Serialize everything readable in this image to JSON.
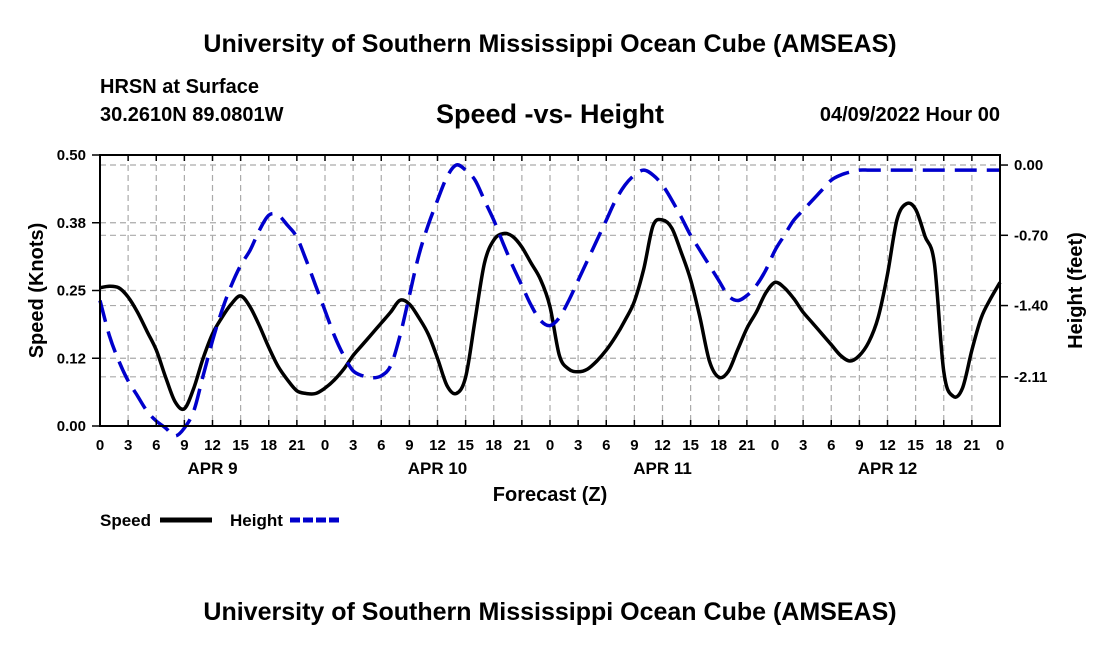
{
  "header": {
    "main_title": "University of Southern Mississippi Ocean Cube (AMSEAS)",
    "station": "HRSN at Surface",
    "coords": "30.2610N  89.0801W",
    "chart_title": "Speed -vs- Height",
    "date": "04/09/2022 Hour 00"
  },
  "footer": {
    "title": "University of Southern Mississippi Ocean Cube (AMSEAS)"
  },
  "chart_data": {
    "type": "line",
    "title": "Speed -vs- Height",
    "xlabel": "Forecast (Z)",
    "ylabel": "Speed (Knots)",
    "y2label": "Height (feet)",
    "xlim": [
      0,
      96
    ],
    "ylim": [
      0,
      0.5
    ],
    "y2lim": [
      -2.6,
      0.1
    ],
    "x_ticks": [
      0,
      3,
      6,
      9,
      12,
      15,
      18,
      21,
      24,
      27,
      30,
      33,
      36,
      39,
      42,
      45,
      48,
      51,
      54,
      57,
      60,
      63,
      66,
      69,
      72,
      75,
      78,
      81,
      84,
      87,
      90,
      93,
      96
    ],
    "x_tick_labels": [
      "0",
      "3",
      "6",
      "9",
      "12",
      "15",
      "18",
      "21",
      "0",
      "3",
      "6",
      "9",
      "12",
      "15",
      "18",
      "21",
      "0",
      "3",
      "6",
      "9",
      "12",
      "15",
      "18",
      "21",
      "0",
      "3",
      "6",
      "9",
      "12",
      "15",
      "18",
      "21",
      "0"
    ],
    "day_labels": [
      {
        "x": 12,
        "label": "APR 9"
      },
      {
        "x": 36,
        "label": "APR 10"
      },
      {
        "x": 60,
        "label": "APR 11"
      },
      {
        "x": 84,
        "label": "APR 12"
      }
    ],
    "y_ticks": [
      0.0,
      0.125,
      0.25,
      0.375,
      0.5
    ],
    "y_tick_labels": [
      "0.00",
      "0.12",
      "0.25",
      "0.38",
      "0.50"
    ],
    "y2_ticks": [
      0.0,
      -0.7,
      -1.4,
      -2.11
    ],
    "y2_tick_labels": [
      "0.00",
      "-0.70",
      "-1.40",
      "-2.11"
    ],
    "grid": true,
    "legend": "bottom-left",
    "series": [
      {
        "name": "Speed",
        "axis": "left",
        "color": "#000000",
        "dash": "solid",
        "x": [
          0,
          1,
          2,
          3,
          4,
          5,
          6,
          7,
          8,
          9,
          10,
          11,
          12,
          13,
          14,
          15,
          16,
          17,
          18,
          19,
          20,
          21,
          22,
          23,
          24,
          25,
          26,
          27,
          28,
          29,
          30,
          31,
          32,
          33,
          34,
          35,
          36,
          37,
          38,
          39,
          40,
          41,
          42,
          43,
          44,
          45,
          46,
          47,
          48,
          49,
          50,
          51,
          52,
          53,
          54,
          55,
          56,
          57,
          58,
          59,
          60,
          61,
          62,
          63,
          64,
          65,
          66,
          67,
          68,
          69,
          70,
          71,
          72,
          73,
          74,
          75,
          76,
          77,
          78,
          79,
          80,
          81,
          82,
          83,
          84,
          85,
          86,
          87,
          88,
          89,
          90,
          91,
          92,
          93,
          94,
          95,
          96
        ],
        "values": [
          0.255,
          0.258,
          0.255,
          0.238,
          0.21,
          0.175,
          0.14,
          0.09,
          0.045,
          0.032,
          0.07,
          0.125,
          0.17,
          0.2,
          0.225,
          0.24,
          0.22,
          0.185,
          0.145,
          0.11,
          0.085,
          0.065,
          0.06,
          0.06,
          0.07,
          0.085,
          0.105,
          0.13,
          0.15,
          0.17,
          0.19,
          0.21,
          0.232,
          0.225,
          0.2,
          0.17,
          0.125,
          0.075,
          0.06,
          0.09,
          0.195,
          0.3,
          0.343,
          0.355,
          0.35,
          0.33,
          0.3,
          0.27,
          0.22,
          0.13,
          0.105,
          0.1,
          0.105,
          0.12,
          0.14,
          0.165,
          0.195,
          0.23,
          0.29,
          0.37,
          0.38,
          0.365,
          0.32,
          0.27,
          0.2,
          0.12,
          0.09,
          0.1,
          0.14,
          0.18,
          0.21,
          0.245,
          0.265,
          0.255,
          0.235,
          0.21,
          0.19,
          0.17,
          0.15,
          0.13,
          0.12,
          0.13,
          0.155,
          0.2,
          0.28,
          0.38,
          0.41,
          0.4,
          0.35,
          0.3,
          0.1,
          0.055,
          0.07,
          0.14,
          0.2,
          0.235,
          0.265
        ]
      },
      {
        "name": "Height",
        "axis": "right",
        "color": "#0000CC",
        "dash": "dashed",
        "x": [
          0,
          1,
          2,
          3,
          4,
          5,
          6,
          7,
          8,
          9,
          10,
          11,
          12,
          13,
          14,
          15,
          16,
          17,
          18,
          19,
          20,
          21,
          22,
          23,
          24,
          25,
          26,
          27,
          28,
          29,
          30,
          31,
          32,
          33,
          34,
          35,
          36,
          37,
          38,
          39,
          40,
          41,
          42,
          43,
          44,
          45,
          46,
          47,
          48,
          49,
          50,
          51,
          52,
          53,
          54,
          55,
          56,
          57,
          58,
          59,
          60,
          61,
          62,
          63,
          64,
          65,
          66,
          67,
          68,
          69,
          70,
          71,
          72,
          73,
          74,
          75,
          76,
          77,
          78,
          79,
          80,
          81,
          82,
          83,
          84,
          85,
          86,
          87,
          88,
          89,
          90,
          91,
          92,
          93,
          94,
          95,
          96
        ],
        "values": [
          -1.35,
          -1.7,
          -1.95,
          -2.15,
          -2.3,
          -2.45,
          -2.55,
          -2.62,
          -2.7,
          -2.62,
          -2.45,
          -2.1,
          -1.75,
          -1.45,
          -1.2,
          -1.0,
          -0.85,
          -0.65,
          -0.5,
          -0.5,
          -0.6,
          -0.72,
          -0.95,
          -1.2,
          -1.45,
          -1.7,
          -1.9,
          -2.05,
          -2.1,
          -2.12,
          -2.1,
          -2.0,
          -1.7,
          -1.3,
          -0.9,
          -0.6,
          -0.35,
          -0.12,
          0.0,
          -0.05,
          -0.15,
          -0.35,
          -0.55,
          -0.78,
          -1.0,
          -1.2,
          -1.4,
          -1.55,
          -1.6,
          -1.52,
          -1.35,
          -1.15,
          -0.95,
          -0.75,
          -0.55,
          -0.35,
          -0.2,
          -0.1,
          -0.05,
          -0.1,
          -0.2,
          -0.35,
          -0.52,
          -0.7,
          -0.85,
          -1.0,
          -1.15,
          -1.3,
          -1.35,
          -1.3,
          -1.2,
          -1.05,
          -0.85,
          -0.7,
          -0.55,
          -0.45,
          -0.35,
          -0.25,
          -0.15,
          -0.1,
          -0.07,
          -0.05,
          -0.05,
          -0.05,
          -0.05,
          -0.05,
          -0.05,
          -0.05,
          -0.05,
          -0.05,
          -0.05,
          -0.05,
          -0.05,
          -0.05,
          -0.05,
          -0.05,
          -0.05
        ]
      }
    ]
  }
}
